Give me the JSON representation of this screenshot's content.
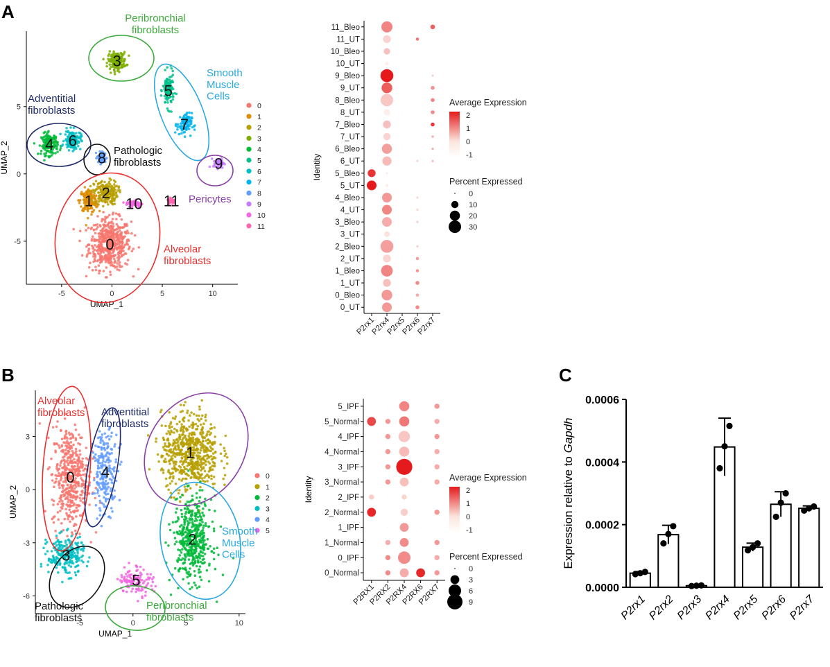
{
  "panels": {
    "a": "A",
    "b": "B",
    "c": "C"
  },
  "colors": {
    "clusters12": [
      "#F8766D",
      "#DE8C00",
      "#B79F00",
      "#7CAE00",
      "#00BA38",
      "#00C08B",
      "#00BFC4",
      "#00B4F0",
      "#619CFF",
      "#C77CFF",
      "#F564E3",
      "#FF64B0"
    ],
    "clusters6": [
      "#F8766D",
      "#B79F00",
      "#00BA38",
      "#00BFC4",
      "#619CFF",
      "#F564E3"
    ],
    "label_red": "#E8302E",
    "label_green": "#3CAA3C",
    "label_cyan": "#29A9E0",
    "label_navy": "#1F2A6B",
    "label_purple": "#8B3FA8",
    "label_black": "#111111",
    "dot_low": "#FBE5DD",
    "dot_high": "#E41A1C"
  },
  "chart_data": [
    {
      "id": "A_umap",
      "type": "scatter",
      "xlabel": "UMAP_1",
      "ylabel": "UMAP_2",
      "xlim": [
        -8.5,
        12.5
      ],
      "ylim": [
        -8.2,
        10.6
      ],
      "xticks": [
        "-5",
        "0",
        "5",
        "10"
      ],
      "yticks": [
        "-5",
        "0",
        "5"
      ],
      "legend": [
        "0",
        "1",
        "2",
        "3",
        "4",
        "5",
        "6",
        "7",
        "8",
        "9",
        "10",
        "11"
      ],
      "clusters": [
        {
          "id": "0",
          "label": "0",
          "center": [
            -0.2,
            -5.2
          ],
          "spread": [
            2.3,
            2.1
          ],
          "n": 520
        },
        {
          "id": "1",
          "label": "1",
          "center": [
            -2.3,
            -2.0
          ],
          "spread": [
            1.0,
            1.0
          ],
          "n": 160
        },
        {
          "id": "2",
          "label": "2",
          "center": [
            -0.6,
            -1.4
          ],
          "spread": [
            1.3,
            1.0
          ],
          "n": 200
        },
        {
          "id": "3",
          "label": "3",
          "center": [
            0.5,
            8.4
          ],
          "spread": [
            1.0,
            0.7
          ],
          "n": 180
        },
        {
          "id": "4",
          "label": "4",
          "center": [
            -6.2,
            2.2
          ],
          "spread": [
            0.9,
            0.9
          ],
          "n": 150
        },
        {
          "id": "5",
          "label": "5",
          "center": [
            5.6,
            6.2
          ],
          "spread": [
            0.6,
            1.4
          ],
          "n": 120
        },
        {
          "id": "6",
          "label": "6",
          "center": [
            -3.9,
            2.5
          ],
          "spread": [
            0.9,
            0.8
          ],
          "n": 140
        },
        {
          "id": "7",
          "label": "7",
          "center": [
            7.2,
            3.7
          ],
          "spread": [
            0.8,
            0.9
          ],
          "n": 90
        },
        {
          "id": "8",
          "label": "8",
          "center": [
            -1.0,
            1.2
          ],
          "spread": [
            0.5,
            0.5
          ],
          "n": 60
        },
        {
          "id": "9",
          "label": "9",
          "center": [
            10.6,
            0.8
          ],
          "spread": [
            0.6,
            0.4
          ],
          "n": 50
        },
        {
          "id": "10",
          "label": "10",
          "center": [
            2.2,
            -2.2
          ],
          "spread": [
            0.9,
            0.3
          ],
          "n": 60
        },
        {
          "id": "11",
          "label": "11",
          "center": [
            5.9,
            -2.0
          ],
          "spread": [
            0.4,
            0.3
          ],
          "n": 30
        }
      ],
      "annotations": [
        {
          "text": "Peribronchial\nfibroblasts",
          "color": "green"
        },
        {
          "text": "Smooth\nMuscle\nCells",
          "color": "cyan"
        },
        {
          "text": "Adventitial\nfibroblasts",
          "color": "navy"
        },
        {
          "text": "Pathologic\nfibroblasts",
          "color": "black"
        },
        {
          "text": "Pericytes",
          "color": "purple"
        },
        {
          "text": "Alveolar\nfibroblasts",
          "color": "red"
        }
      ]
    },
    {
      "id": "A_dotplot",
      "type": "dot",
      "ylabel": "Identity",
      "genes": [
        "P2rx1",
        "P2rx4",
        "P2rx5",
        "P2rx6",
        "P2rx7"
      ],
      "identities": [
        "0_UT",
        "0_Bleo",
        "1_UT",
        "1_Bleo",
        "2_UT",
        "2_Bleo",
        "3_UT",
        "3_Bleo",
        "4_UT",
        "4_Bleo",
        "5_UT",
        "5_Bleo",
        "6_UT",
        "6_Bleo",
        "7_UT",
        "7_Bleo",
        "8_UT",
        "8_Bleo",
        "9_UT",
        "9_Bleo",
        "10_UT",
        "10_Bleo",
        "11_UT",
        "11_Bleo"
      ],
      "pct_expressed": [
        [
          0,
          18,
          0,
          3,
          0
        ],
        [
          0,
          22,
          0,
          2,
          0
        ],
        [
          0,
          12,
          0,
          3,
          0
        ],
        [
          0,
          26,
          0,
          2,
          0
        ],
        [
          0,
          12,
          0,
          2,
          0
        ],
        [
          0,
          32,
          0,
          1,
          0
        ],
        [
          0,
          6,
          0,
          0,
          0
        ],
        [
          0,
          18,
          0,
          1,
          0
        ],
        [
          0,
          18,
          0,
          1,
          0
        ],
        [
          0,
          18,
          0,
          1,
          0
        ],
        [
          18,
          2,
          0,
          0,
          0
        ],
        [
          12,
          1,
          0,
          0,
          0
        ],
        [
          0,
          16,
          0,
          1,
          1
        ],
        [
          0,
          20,
          0,
          0,
          1
        ],
        [
          0,
          10,
          0,
          0,
          1
        ],
        [
          0,
          12,
          0,
          0,
          3
        ],
        [
          0,
          8,
          0,
          0,
          3
        ],
        [
          0,
          30,
          0,
          0,
          3
        ],
        [
          0,
          22,
          0,
          0,
          3
        ],
        [
          0,
          32,
          0,
          0,
          1
        ],
        [
          0,
          3,
          0,
          0,
          0
        ],
        [
          0,
          8,
          0,
          0,
          0
        ],
        [
          0,
          12,
          0,
          2,
          0
        ],
        [
          0,
          24,
          0,
          0,
          4
        ]
      ],
      "avg_expression": [
        [
          -1,
          0.3,
          -1,
          0.5,
          -1
        ],
        [
          -1,
          0.3,
          -1,
          0.0,
          -1
        ],
        [
          -1,
          -0.3,
          -1,
          0.5,
          -1
        ],
        [
          -1,
          0.6,
          -1,
          0.3,
          -1
        ],
        [
          -1,
          -0.6,
          -1,
          0.2,
          -1
        ],
        [
          -1,
          0.2,
          -1,
          -0.5,
          -1
        ],
        [
          -1,
          -0.8,
          -1,
          -1,
          -1
        ],
        [
          -1,
          0.0,
          -1,
          -0.5,
          -1
        ],
        [
          -1,
          0.6,
          -1,
          -0.6,
          -1
        ],
        [
          -1,
          0.3,
          -1,
          -0.6,
          -1
        ],
        [
          2.2,
          -1,
          -1,
          -1,
          -1
        ],
        [
          1.8,
          -1,
          -1,
          -1,
          -1
        ],
        [
          -1,
          -0.2,
          -1,
          -0.6,
          -0.2
        ],
        [
          -1,
          0.2,
          -1,
          -1,
          0.0
        ],
        [
          -1,
          -0.6,
          -1,
          -1,
          0.0
        ],
        [
          -1,
          -0.3,
          -1,
          -1,
          1.8
        ],
        [
          -1,
          -1.0,
          -1,
          -1,
          0.5
        ],
        [
          -1,
          -0.4,
          -1,
          -1,
          0.6
        ],
        [
          -1,
          1.2,
          -1,
          -1,
          0.4
        ],
        [
          -1,
          2.2,
          -1,
          -1,
          -0.5
        ],
        [
          -1,
          -1,
          -1,
          -1,
          -1
        ],
        [
          -1,
          -0.3,
          -1,
          -1,
          -1
        ],
        [
          -1,
          -0.6,
          -1,
          0.8,
          -1
        ],
        [
          -1,
          0.6,
          -1,
          -1,
          1.2
        ]
      ],
      "legend_avg": {
        "title": "Average Expression",
        "ticks": [
          "2",
          "1",
          "0",
          "-1"
        ]
      },
      "legend_pct": {
        "title": "Percent Expressed",
        "ticks": [
          "0",
          "10",
          "20",
          "30"
        ]
      }
    },
    {
      "id": "B_umap",
      "type": "scatter",
      "xlabel": "UMAP_1",
      "ylabel": "UMAP_2",
      "xlim": [
        -9.2,
        10.6
      ],
      "ylim": [
        -7.0,
        5.6
      ],
      "xticks": [
        "-5",
        "0",
        "5",
        "10"
      ],
      "yticks": [
        "3",
        "0",
        "-3",
        "-6"
      ],
      "legend": [
        "0",
        "1",
        "2",
        "3",
        "4",
        "5"
      ],
      "clusters": [
        {
          "id": "0",
          "label": "0",
          "center": [
            -5.9,
            0.7
          ],
          "spread": [
            1.9,
            3.2
          ],
          "n": 480
        },
        {
          "id": "1",
          "label": "1",
          "center": [
            5.4,
            2.1
          ],
          "spread": [
            3.0,
            2.4
          ],
          "n": 620
        },
        {
          "id": "2",
          "label": "2",
          "center": [
            5.6,
            -2.8
          ],
          "spread": [
            2.0,
            2.6
          ],
          "n": 460
        },
        {
          "id": "3",
          "label": "3",
          "center": [
            -6.3,
            -3.7
          ],
          "spread": [
            1.9,
            1.2
          ],
          "n": 240
        },
        {
          "id": "4",
          "label": "4",
          "center": [
            -2.6,
            1.0
          ],
          "spread": [
            1.3,
            2.5
          ],
          "n": 220
        },
        {
          "id": "5",
          "label": "5",
          "center": [
            0.3,
            -5.1
          ],
          "spread": [
            1.8,
            0.9
          ],
          "n": 120
        }
      ],
      "annotations": [
        {
          "text": "Alveolar\nfibroblasts",
          "color": "red"
        },
        {
          "text": "Adventitial\nfibroblasts",
          "color": "navy"
        },
        {
          "text": "Smooth\nMuscle\nCells",
          "color": "cyan"
        },
        {
          "text": "Pathologic\nfibroblasts",
          "color": "black"
        },
        {
          "text": "Peribronchial\nfibroblasts",
          "color": "green"
        }
      ]
    },
    {
      "id": "B_dotplot",
      "type": "dot",
      "ylabel": "Identity",
      "genes": [
        "P2RX1",
        "P2RX2",
        "P2RX4",
        "P2RX6",
        "P2RX7"
      ],
      "identities": [
        "0_Normal",
        "0_IPF",
        "1_Normal",
        "1_IPF",
        "2_Normal",
        "2_IPF",
        "3_Normal",
        "3_IPF",
        "4_Normal",
        "4_IPF",
        "5_Normal",
        "5_IPF"
      ],
      "pct_expressed": [
        [
          0,
          1,
          3,
          3,
          1
        ],
        [
          0,
          1,
          6,
          0,
          1
        ],
        [
          0,
          1,
          3,
          0,
          1
        ],
        [
          0,
          0,
          3,
          0,
          0
        ],
        [
          3,
          0,
          2,
          0,
          1
        ],
        [
          1,
          0,
          1,
          0,
          0
        ],
        [
          0,
          1,
          3,
          0,
          1
        ],
        [
          0,
          1,
          10,
          0,
          1
        ],
        [
          0,
          1,
          4,
          0,
          1
        ],
        [
          0,
          1,
          5,
          0,
          1
        ],
        [
          3,
          1,
          4,
          0,
          1
        ],
        [
          0,
          0,
          4,
          0,
          1
        ]
      ],
      "avg_expression": [
        [
          -1,
          0.5,
          0.0,
          2.0,
          0.3
        ],
        [
          -1,
          0.5,
          0.5,
          -1,
          0.0
        ],
        [
          -1,
          0.0,
          0.5,
          -1,
          0.3
        ],
        [
          -1,
          -1,
          0.3,
          -1,
          -1
        ],
        [
          2.0,
          -1,
          -0.5,
          -1,
          0.3
        ],
        [
          -0.5,
          -1,
          -0.6,
          -1,
          -1
        ],
        [
          -1,
          0.3,
          -0.3,
          -1,
          0.0
        ],
        [
          -1,
          0.3,
          2.2,
          -1,
          0.0
        ],
        [
          -1,
          0.3,
          -0.2,
          -1,
          0.0
        ],
        [
          -1,
          0.3,
          -0.4,
          -1,
          0.3
        ],
        [
          1.5,
          0.3,
          0.8,
          -1,
          0.0
        ],
        [
          -1,
          -1,
          0.6,
          -1,
          0.3
        ]
      ],
      "legend_avg": {
        "title": "Average Expression",
        "ticks": [
          "2",
          "1",
          "0",
          "-1"
        ]
      },
      "legend_pct": {
        "title": "Percent Expressed",
        "ticks": [
          "0",
          "3",
          "6",
          "9"
        ]
      }
    },
    {
      "id": "C_bar",
      "type": "bar",
      "ylabel_prefix": "Expression relative to ",
      "ylabel_italic": "Gapdh",
      "ylim": [
        0,
        0.0006
      ],
      "yticks": [
        "0.0000",
        "0.0002",
        "0.0004",
        "0.0006"
      ],
      "categories": [
        "P2rx1",
        "P2rx2",
        "P2rx3",
        "P2rx4",
        "P2rx5",
        "P2rx6",
        "P2rx7"
      ],
      "values": [
        4.5e-05,
        0.000168,
        5e-06,
        0.000448,
        0.000128,
        0.000265,
        0.000252
      ],
      "errors": [
        5e-06,
        3e-05,
        2e-06,
        9.2e-05,
        1.3e-05,
        4e-05,
        8e-06
      ],
      "points": [
        [
          4.2e-05,
          4.5e-05,
          4.9e-05
        ],
        [
          0.00014,
          0.00017,
          0.000195
        ],
        [
          4e-06,
          5e-06,
          6e-06
        ],
        [
          0.00038,
          0.00045,
          0.000515
        ],
        [
          0.000118,
          0.000128,
          0.00014
        ],
        [
          0.000225,
          0.00027,
          0.0003
        ],
        [
          0.000245,
          0.000252,
          0.000258
        ]
      ]
    }
  ]
}
